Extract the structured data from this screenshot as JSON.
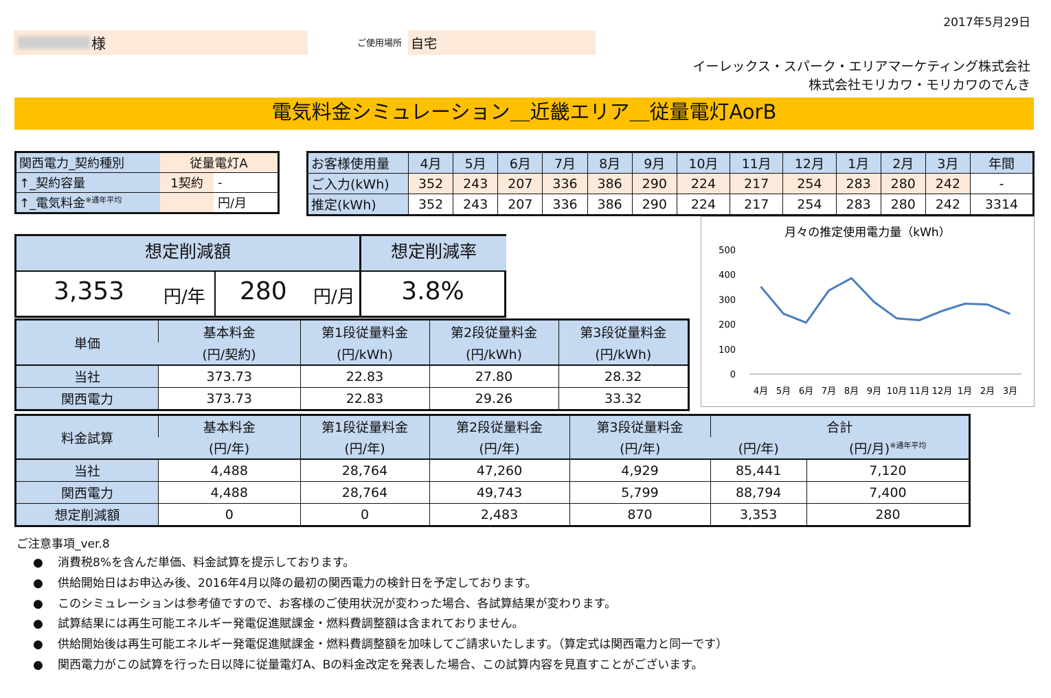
{
  "header": {
    "date": "2017年5月29日",
    "customer_suffix": "様",
    "place_label": "ご使用場所",
    "place_value": "自宅",
    "company1": "イーレックス・スパーク・エリアマーケティング株式会社",
    "company2": "株式会社モリカワ・モリカワのでんき",
    "banner": "電気料金シミュレーション＿近畿エリア＿従量電灯AorB"
  },
  "contract": {
    "rows": [
      {
        "label": "関西電力_契約種別",
        "value": "従量電灯A"
      },
      {
        "label": "↑_契約容量",
        "value": "1契約",
        "unit": "-"
      },
      {
        "label": "↑_電気料金",
        "note": "※通年平均",
        "value": "",
        "unit": "円/月"
      }
    ]
  },
  "usage": {
    "header_label": "お客様使用量",
    "months": [
      "4月",
      "5月",
      "6月",
      "7月",
      "8月",
      "9月",
      "10月",
      "11月",
      "12月",
      "1月",
      "2月",
      "3月",
      "年間"
    ],
    "input_label": "ご入力(kWh)",
    "input_values": [
      "352",
      "243",
      "207",
      "336",
      "386",
      "290",
      "224",
      "217",
      "254",
      "283",
      "280",
      "242",
      "-"
    ],
    "estimate_label": "推定(kWh)",
    "estimate_values": [
      "352",
      "243",
      "207",
      "336",
      "386",
      "290",
      "224",
      "217",
      "254",
      "283",
      "280",
      "242",
      "3314"
    ]
  },
  "savings": {
    "amount_label": "想定削減額",
    "rate_label": "想定削減率",
    "per_year": "3,353",
    "per_year_unit": "円/年",
    "per_month": "280",
    "per_month_unit": "円/月",
    "rate": "3.8%"
  },
  "unit_price": {
    "row_header": "単価",
    "columns": [
      {
        "name": "基本料金",
        "unit": "(円/契約)"
      },
      {
        "name": "第1段従量料金",
        "unit": "(円/kWh)"
      },
      {
        "name": "第2段従量料金",
        "unit": "(円/kWh)"
      },
      {
        "name": "第3段従量料金",
        "unit": "(円/kWh)"
      }
    ],
    "rows": [
      {
        "label": "当社",
        "values": [
          "373.73",
          "22.83",
          "27.80",
          "28.32"
        ]
      },
      {
        "label": "関西電力",
        "values": [
          "373.73",
          "22.83",
          "29.26",
          "33.32"
        ]
      }
    ]
  },
  "calc": {
    "row_header": "料金試算",
    "columns": [
      {
        "name": "基本料金",
        "unit": "(円/年)"
      },
      {
        "name": "第1段従量料金",
        "unit": "(円/年)"
      },
      {
        "name": "第2段従量料金",
        "unit": "(円/年)"
      },
      {
        "name": "第3段従量料金",
        "unit": "(円/年)"
      }
    ],
    "total_label": "合計",
    "total_unit_year": "(円/年)",
    "total_unit_month": "(円/月)",
    "total_note": "※通年平均",
    "rows": [
      {
        "label": "当社",
        "values": [
          "4,488",
          "28,764",
          "47,260",
          "4,929",
          "85,441",
          "7,120"
        ]
      },
      {
        "label": "関西電力",
        "values": [
          "4,488",
          "28,764",
          "49,743",
          "5,799",
          "88,794",
          "7,400"
        ]
      },
      {
        "label": "想定削減額",
        "values": [
          "0",
          "0",
          "2,483",
          "870",
          "3,353",
          "280"
        ]
      }
    ]
  },
  "chart_data": {
    "type": "line",
    "title": "月々の推定使用電力量（kWh）",
    "categories": [
      "4月",
      "5月",
      "6月",
      "7月",
      "8月",
      "9月",
      "10月",
      "11月",
      "12月",
      "1月",
      "2月",
      "3月"
    ],
    "values": [
      352,
      243,
      207,
      336,
      386,
      290,
      224,
      217,
      254,
      283,
      280,
      242
    ],
    "ylim": [
      0,
      500
    ],
    "yticks": [
      "0",
      "100",
      "200",
      "300",
      "400",
      "500"
    ],
    "line_color": "#4a7ebb",
    "grid": false,
    "legend": "none"
  },
  "notes": {
    "title": "ご注意事項_ver.8",
    "bullet": "●",
    "items": [
      "消費税8%を含んだ単価、料金試算を提示しております。",
      "供給開始日はお申込み後、2016年4月以降の最初の関西電力の検針日を予定しております。",
      "このシミュレーションは参考値ですので、お客様のご使用状況が変わった場合、各試算結果が変わります。",
      "試算結果には再生可能エネルギー発電促進賦課金・燃料費調整額は含まれておりません。",
      "供給開始後は再生可能エネルギー発電促進賦課金・燃料費調整額を加味してご請求いたします。（算定式は関西電力と同一です）",
      "関西電力がこの試算を行った日以降に従量電灯A、Bの料金改定を発表した場合、この試算内容を見直すことがございます。"
    ]
  }
}
